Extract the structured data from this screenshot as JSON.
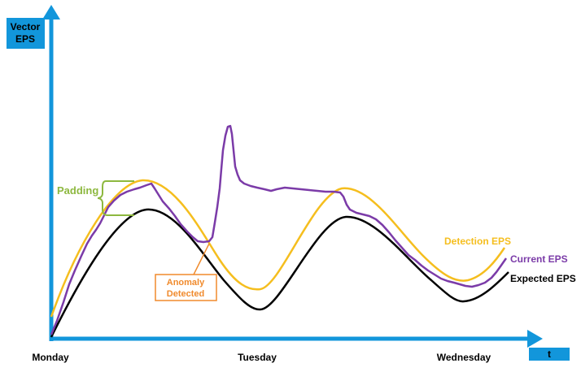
{
  "y_axis_label": [
    "Vector",
    "EPS"
  ],
  "x_axis_label": "t",
  "x_ticks": [
    "Monday",
    "Tuesday",
    "Wednesday"
  ],
  "annotations": {
    "padding": "Padding",
    "anomaly": [
      "Anomaly",
      "Detected"
    ]
  },
  "series": {
    "detection": {
      "label": "Detection EPS",
      "color": "#F5BE1E"
    },
    "current": {
      "label": "Current EPS",
      "color": "#7B3BA8"
    },
    "expected": {
      "label": "Expected EPS",
      "color": "#000000"
    }
  },
  "colors": {
    "axis": "#1296DB",
    "padding": "#8DB83F",
    "anomaly": "#F08A2C",
    "axis_label_text": "#000000"
  }
}
